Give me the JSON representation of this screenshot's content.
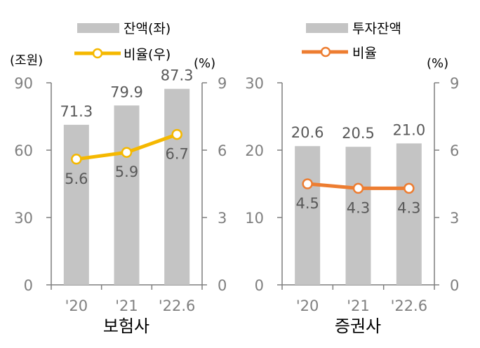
{
  "chart_data": [
    {
      "type": "bar+line",
      "title": "보험사",
      "categories": [
        "'20",
        "'21",
        "'22.6"
      ],
      "left_unit": "(조원)",
      "right_unit": "(%)",
      "ylim_left": [
        0,
        90
      ],
      "yticks_left": [
        "0",
        "30",
        "60",
        "90"
      ],
      "ylim_right": [
        0,
        9
      ],
      "yticks_right": [
        "0",
        "3",
        "6",
        "9"
      ],
      "grid": false,
      "legend_position": "top",
      "series": [
        {
          "name": "잔액(좌)",
          "kind": "bar",
          "axis": "left",
          "color": "#c4c4c4",
          "values": [
            71.3,
            79.9,
            87.3
          ],
          "labels": [
            "71.3",
            "79.9",
            "87.3"
          ]
        },
        {
          "name": "비율(우)",
          "kind": "line",
          "axis": "right",
          "color": "#f5b800",
          "values": [
            5.6,
            5.9,
            6.7
          ],
          "labels": [
            "5.6",
            "5.9",
            "6.7"
          ]
        }
      ]
    },
    {
      "type": "bar+line",
      "title": "증권사",
      "categories": [
        "'20",
        "'21",
        "'22.6"
      ],
      "left_unit": "",
      "right_unit": "(%)",
      "ylim_left": [
        0,
        30
      ],
      "yticks_left": [
        "0",
        "10",
        "20",
        "30"
      ],
      "ylim_right": [
        0,
        9
      ],
      "yticks_right": [
        "0",
        "3",
        "6",
        "9"
      ],
      "grid": false,
      "legend_position": "top",
      "series": [
        {
          "name": "투자잔액",
          "kind": "bar",
          "axis": "left",
          "color": "#c4c4c4",
          "values": [
            20.6,
            20.5,
            21.0
          ],
          "labels": [
            "20.6",
            "20.5",
            "21.0"
          ]
        },
        {
          "name": "비율",
          "kind": "line",
          "axis": "right",
          "color": "#ed7d31",
          "values": [
            4.5,
            4.3,
            4.3
          ],
          "labels": [
            "4.5",
            "4.3",
            "4.3"
          ]
        }
      ]
    }
  ],
  "colors": {
    "axis": "#7f7f7f",
    "tick_text": "#7f7f7f",
    "label_text": "#595959",
    "title_text": "#000000",
    "marker_fill": "#ffffff"
  }
}
